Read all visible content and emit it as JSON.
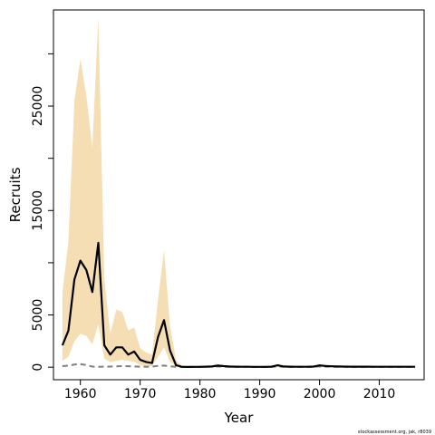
{
  "chart_data": {
    "type": "line",
    "title": "",
    "xlabel": "Year",
    "ylabel": "Recruits",
    "xlim": [
      1955.5,
      2017.5
    ],
    "ylim": [
      -1200,
      34200
    ],
    "x_ticks": [
      1960,
      1970,
      1980,
      1990,
      2000,
      2010
    ],
    "y_ticks": [
      0,
      5000,
      15000,
      25000
    ],
    "y_minor_ticks": [
      10000,
      20000,
      30000
    ],
    "x_tick_labels": [
      "1960",
      "1970",
      "1980",
      "1990",
      "2000",
      "2010"
    ],
    "y_tick_labels": [
      "0",
      "5000",
      "15000",
      "25000"
    ],
    "grid": false,
    "legend": false,
    "credit": "stockassessment.org, jak, r8039",
    "colors": {
      "band": "#f5deb3",
      "estimate": "#000000",
      "secondary": "#808080"
    },
    "years": [
      1957,
      1958,
      1959,
      1960,
      1961,
      1962,
      1963,
      1964,
      1965,
      1966,
      1967,
      1968,
      1969,
      1970,
      1971,
      1972,
      1973,
      1974,
      1975,
      1976,
      1977,
      1978,
      1979,
      1980,
      1981,
      1982,
      1983,
      1984,
      1985,
      1986,
      1987,
      1988,
      1989,
      1990,
      1991,
      1992,
      1993,
      1994,
      1995,
      1996,
      1997,
      1998,
      1999,
      2000,
      2001,
      2002,
      2003,
      2004,
      2005,
      2006,
      2007,
      2008,
      2009,
      2010,
      2011,
      2012,
      2013,
      2014,
      2015,
      2016
    ],
    "series": [
      {
        "role": "band-upper",
        "values": [
          7200,
          12000,
          25500,
          29500,
          26000,
          21000,
          33500,
          8500,
          3200,
          5500,
          5300,
          3500,
          3800,
          1800,
          1400,
          1200,
          6500,
          11200,
          4000,
          700,
          60,
          40,
          50,
          60,
          90,
          130,
          280,
          180,
          120,
          100,
          80,
          70,
          60,
          60,
          60,
          100,
          320,
          130,
          90,
          70,
          70,
          80,
          120,
          300,
          200,
          150,
          130,
          110,
          100,
          100,
          90,
          90,
          80,
          80,
          80,
          70,
          70,
          70,
          70,
          70
        ]
      },
      {
        "role": "band-lower",
        "values": [
          600,
          1000,
          2500,
          3200,
          3000,
          2200,
          4100,
          800,
          500,
          600,
          700,
          600,
          500,
          200,
          100,
          100,
          1000,
          1900,
          500,
          80,
          10,
          10,
          10,
          10,
          10,
          20,
          30,
          20,
          15,
          10,
          10,
          10,
          10,
          10,
          10,
          10,
          50,
          20,
          10,
          10,
          10,
          10,
          20,
          60,
          30,
          20,
          20,
          20,
          20,
          20,
          15,
          15,
          10,
          10,
          10,
          10,
          10,
          10,
          10,
          10
        ]
      },
      {
        "role": "estimate",
        "values": [
          2100,
          3500,
          8400,
          10200,
          9300,
          7200,
          11900,
          2100,
          1200,
          1900,
          1900,
          1200,
          1500,
          700,
          500,
          400,
          2900,
          4500,
          1600,
          200,
          30,
          20,
          30,
          30,
          50,
          70,
          150,
          100,
          60,
          50,
          40,
          40,
          30,
          30,
          30,
          50,
          180,
          70,
          50,
          40,
          40,
          40,
          60,
          170,
          110,
          80,
          70,
          60,
          50,
          50,
          50,
          50,
          40,
          40,
          40,
          40,
          40,
          40,
          40,
          40
        ]
      },
      {
        "role": "secondary",
        "values": [
          100,
          150,
          250,
          300,
          200,
          60,
          40,
          50,
          60,
          80,
          100,
          90,
          70,
          50,
          40,
          60,
          120,
          150,
          80,
          40,
          20,
          20,
          20,
          30,
          40,
          50,
          60,
          50,
          40,
          30,
          30,
          30,
          20,
          20,
          20,
          30,
          60,
          40,
          30,
          20,
          20,
          20,
          30,
          70,
          50,
          40,
          30,
          30,
          20,
          20,
          20,
          20,
          20,
          20,
          20,
          20,
          20,
          20,
          20,
          20
        ]
      }
    ]
  }
}
